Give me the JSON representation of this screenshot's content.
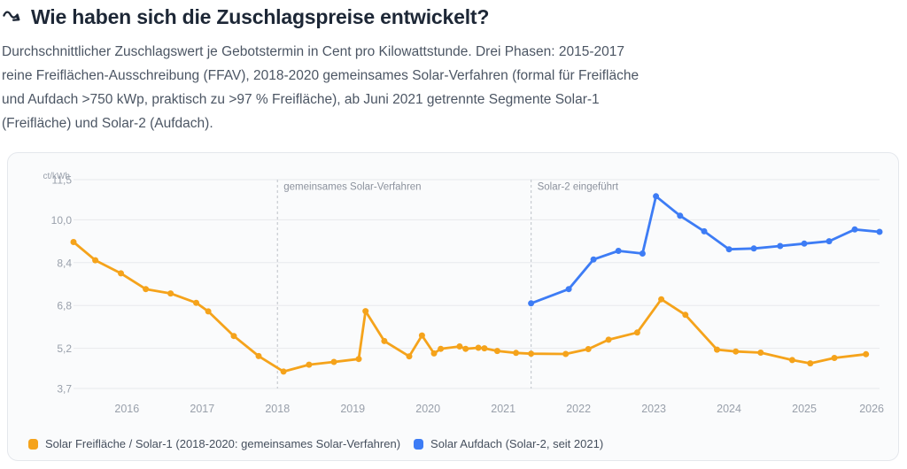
{
  "header": {
    "title": "Wie haben sich die Zuschlagspreise entwickelt?",
    "title_icon": "wavy-arrow-down-right",
    "description_lines": [
      "Durchschnittlicher Zuschlagswert je Gebotstermin in Cent pro Kilowattstunde. Drei Phasen: 2015-2017",
      "reine Freiflächen-Ausschreibung (FFAV), 2018-2020 gemeinsames Solar-Verfahren (formal für Freifläche",
      "und Aufdach >750 kWp, praktisch zu >97 % Freifläche), ab Juni 2021 getrennte Segmente Solar-1",
      "(Freifläche) und Solar-2 (Aufdach)."
    ]
  },
  "colors": {
    "title_text": "#1d2736",
    "body_text": "#4c5664",
    "tick_text": "#99a0ab",
    "annotation_text": "#8c929d",
    "grid_line": "#e7e9ed",
    "dashed_line": "#c7cbd1",
    "card_border": "#e4e7ec",
    "card_background": "#fafbfc",
    "series_orange": "#f5a31b",
    "series_blue": "#3d7cf5"
  },
  "chart_data": {
    "type": "line",
    "title": "",
    "xlabel": "",
    "ylabel": "ct/kWh",
    "unit_label": "ct/kWh",
    "grid": true,
    "legend_position": "bottom",
    "x_axis": {
      "min": 2015.29,
      "max": 2026.0,
      "tick_values": [
        2016,
        2017,
        2018,
        2019,
        2020,
        2021,
        2022,
        2023,
        2024,
        2025,
        2026
      ],
      "tick_labels": [
        "2016",
        "2017",
        "2018",
        "2019",
        "2020",
        "2021",
        "2022",
        "2023",
        "2024",
        "2025",
        "2026"
      ]
    },
    "y_axis": {
      "min": 3.7,
      "max": 11.5,
      "tick_values": [
        3.7,
        5.2,
        6.8,
        8.4,
        10.0,
        11.5
      ],
      "tick_labels": [
        "3,7",
        "5,2",
        "6,8",
        "8,4",
        "10,0",
        "11,5"
      ]
    },
    "annotations": [
      {
        "x": 2018.0,
        "label": "gemeinsames Solar-Verfahren"
      },
      {
        "x": 2021.37,
        "label": "Solar-2 eingeführt"
      }
    ],
    "series": [
      {
        "id": "solar-freiflaeche",
        "name": "Solar Freifläche / Solar-1 (2018-2020: gemeinsames Solar-Verfahren)",
        "color": "#f5a31b",
        "points": [
          [
            2015.29,
            9.17
          ],
          [
            2015.58,
            8.49
          ],
          [
            2015.92,
            8.0
          ],
          [
            2016.25,
            7.41
          ],
          [
            2016.58,
            7.25
          ],
          [
            2016.92,
            6.9
          ],
          [
            2017.08,
            6.58
          ],
          [
            2017.42,
            5.66
          ],
          [
            2017.75,
            4.91
          ],
          [
            2018.08,
            4.33
          ],
          [
            2018.42,
            4.59
          ],
          [
            2018.75,
            4.69
          ],
          [
            2019.08,
            4.8
          ],
          [
            2019.17,
            6.59
          ],
          [
            2019.42,
            5.47
          ],
          [
            2019.75,
            4.9
          ],
          [
            2019.92,
            5.68
          ],
          [
            2020.08,
            5.01
          ],
          [
            2020.17,
            5.18
          ],
          [
            2020.42,
            5.27
          ],
          [
            2020.5,
            5.18
          ],
          [
            2020.67,
            5.22
          ],
          [
            2020.75,
            5.2
          ],
          [
            2020.92,
            5.1
          ],
          [
            2021.17,
            5.03
          ],
          [
            2021.37,
            5.0
          ],
          [
            2021.83,
            4.99
          ],
          [
            2022.13,
            5.17
          ],
          [
            2022.4,
            5.52
          ],
          [
            2022.78,
            5.79
          ],
          [
            2023.1,
            7.03
          ],
          [
            2023.42,
            6.45
          ],
          [
            2023.84,
            5.15
          ],
          [
            2024.09,
            5.08
          ],
          [
            2024.42,
            5.04
          ],
          [
            2024.84,
            4.76
          ],
          [
            2025.08,
            4.64
          ],
          [
            2025.4,
            4.84
          ],
          [
            2025.82,
            4.98
          ]
        ]
      },
      {
        "id": "solar-aufdach",
        "name": "Solar Aufdach (Solar-2, seit 2021)",
        "color": "#3d7cf5",
        "points": [
          [
            2021.37,
            6.88
          ],
          [
            2021.87,
            7.41
          ],
          [
            2022.2,
            8.52
          ],
          [
            2022.53,
            8.84
          ],
          [
            2022.85,
            8.74
          ],
          [
            2023.03,
            10.88
          ],
          [
            2023.35,
            10.15
          ],
          [
            2023.67,
            9.57
          ],
          [
            2024.0,
            8.9
          ],
          [
            2024.33,
            8.93
          ],
          [
            2024.68,
            9.02
          ],
          [
            2025.0,
            9.11
          ],
          [
            2025.33,
            9.2
          ],
          [
            2025.67,
            9.64
          ],
          [
            2026.0,
            9.55
          ]
        ]
      }
    ]
  }
}
